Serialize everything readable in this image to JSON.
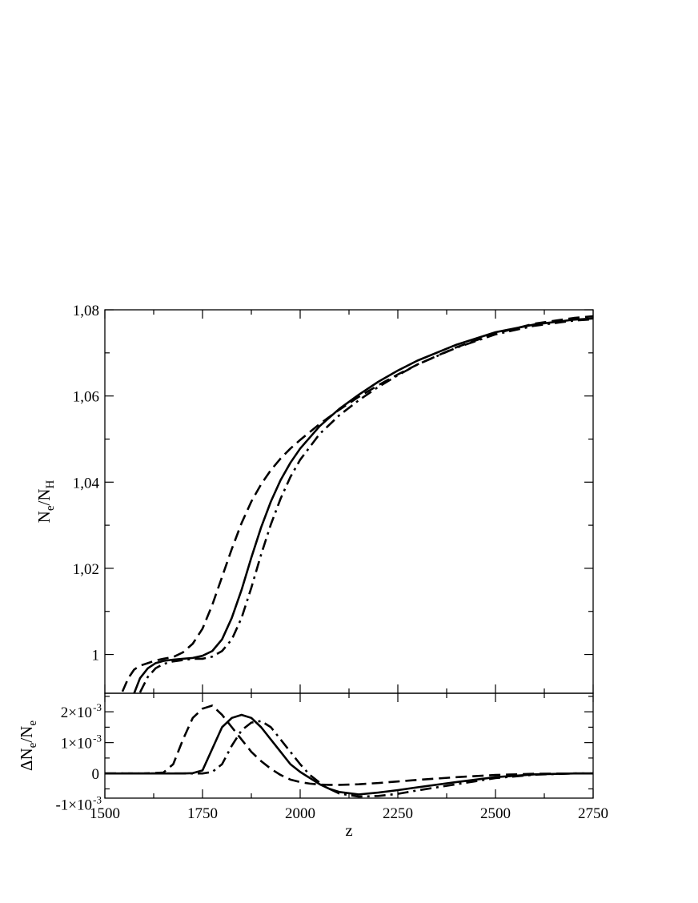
{
  "chart_data": [
    {
      "type": "line",
      "panel": "top",
      "ylabel": "N_e/N_H",
      "xlabel": "",
      "xlim": [
        1500,
        2750
      ],
      "ylim": [
        0.991,
        1.08
      ],
      "x_ticks": [
        1500,
        1750,
        2000,
        2250,
        2500,
        2750
      ],
      "y_ticks": [
        1.0,
        1.02,
        1.04,
        1.06,
        1.08
      ],
      "y_tick_labels": [
        "1",
        "1,02",
        "1,04",
        "1,06",
        "1,08"
      ],
      "grid": false,
      "legend": "none",
      "x": [
        1545,
        1560,
        1575,
        1590,
        1610,
        1630,
        1650,
        1675,
        1700,
        1725,
        1750,
        1775,
        1800,
        1825,
        1850,
        1875,
        1900,
        1925,
        1950,
        1975,
        2000,
        2050,
        2100,
        2150,
        2200,
        2250,
        2300,
        2400,
        2500,
        2600,
        2700,
        2750
      ],
      "series": [
        {
          "style": "dashed",
          "values": [
            0.9914,
            0.9945,
            0.9965,
            0.9974,
            0.998,
            0.9986,
            0.999,
            0.9994,
            1.0005,
            1.0025,
            1.006,
            1.0115,
            1.018,
            1.0245,
            1.0305,
            1.0355,
            1.0395,
            1.0428,
            1.0455,
            1.0478,
            1.0498,
            1.0535,
            1.0568,
            1.0598,
            1.0625,
            1.065,
            1.0673,
            1.0713,
            1.0745,
            1.0768,
            1.0781,
            1.0785
          ]
        },
        {
          "style": "solid",
          "values": [
            null,
            null,
            0.991,
            0.9945,
            0.9968,
            0.998,
            0.9985,
            0.9988,
            0.999,
            0.9992,
            0.9997,
            1.0008,
            1.0035,
            1.0085,
            1.015,
            1.0225,
            1.0295,
            1.0355,
            1.0405,
            1.0445,
            1.0478,
            1.053,
            1.057,
            1.0603,
            1.0633,
            1.0659,
            1.0682,
            1.0719,
            1.0748,
            1.0766,
            1.0777,
            1.078
          ]
        },
        {
          "style": "dash-dot",
          "values": [
            null,
            null,
            null,
            0.9912,
            0.9948,
            0.9968,
            0.9978,
            0.9984,
            0.9987,
            0.999,
            0.999,
            0.9995,
            1.0008,
            1.0035,
            1.0085,
            1.0155,
            1.0232,
            1.0302,
            1.0362,
            1.0412,
            1.0452,
            1.0512,
            1.0555,
            1.059,
            1.0621,
            1.0648,
            1.0673,
            1.0712,
            1.0743,
            1.0763,
            1.0775,
            1.0778
          ]
        }
      ]
    },
    {
      "type": "line",
      "panel": "bottom",
      "ylabel": "ΔN_e/N_e",
      "xlabel": "z",
      "xlim": [
        1500,
        2750
      ],
      "ylim": [
        -0.0008,
        0.0026
      ],
      "x_ticks": [
        1500,
        1750,
        2000,
        2250,
        2500,
        2750
      ],
      "x_tick_labels": [
        "1500",
        "1750",
        "2000",
        "2250",
        "2500",
        "2750"
      ],
      "y_ticks": [
        -0.001,
        0,
        0.001,
        0.002
      ],
      "y_tick_labels": [
        "-1×10",
        "0",
        "1×10",
        "2×10"
      ],
      "y_tick_exponents": [
        "-3",
        "",
        "-3",
        "-3"
      ],
      "grid": false,
      "legend": "none",
      "x": [
        1500,
        1600,
        1650,
        1675,
        1700,
        1725,
        1750,
        1775,
        1800,
        1825,
        1850,
        1875,
        1900,
        1925,
        1950,
        1975,
        2000,
        2025,
        2050,
        2075,
        2100,
        2150,
        2200,
        2250,
        2300,
        2400,
        2500,
        2600,
        2700,
        2750
      ],
      "series": [
        {
          "style": "dashed",
          "values": [
            0,
            0,
            3e-05,
            0.0003,
            0.0011,
            0.0018,
            0.0021,
            0.0022,
            0.0019,
            0.0015,
            0.0011,
            0.0007,
            0.0004,
            0.00015,
            -5e-05,
            -0.0002,
            -0.00028,
            -0.00033,
            -0.00036,
            -0.00037,
            -0.00037,
            -0.00035,
            -0.00031,
            -0.00026,
            -0.00021,
            -0.00012,
            -5e-05,
            -1e-05,
            0,
            0
          ]
        },
        {
          "style": "solid",
          "values": [
            0,
            0,
            0,
            0,
            0,
            1e-05,
            0.0001,
            0.0008,
            0.0015,
            0.0018,
            0.0019,
            0.0018,
            0.0015,
            0.0011,
            0.0007,
            0.0003,
            5e-05,
            -0.00015,
            -0.00035,
            -0.0005,
            -0.0006,
            -0.00068,
            -0.00062,
            -0.00054,
            -0.00045,
            -0.00028,
            -0.00012,
            -3e-05,
            0,
            0
          ]
        },
        {
          "style": "dash-dot",
          "values": [
            0,
            0,
            0,
            0,
            0,
            0,
            0,
            5e-05,
            0.0003,
            0.0009,
            0.0014,
            0.00165,
            0.0017,
            0.0015,
            0.0011,
            0.0007,
            0.0003,
            -5e-05,
            -0.0003,
            -0.0005,
            -0.00065,
            -0.00075,
            -0.00073,
            -0.00066,
            -0.00055,
            -0.00035,
            -0.00015,
            -4e-05,
            0,
            0
          ]
        }
      ]
    }
  ]
}
